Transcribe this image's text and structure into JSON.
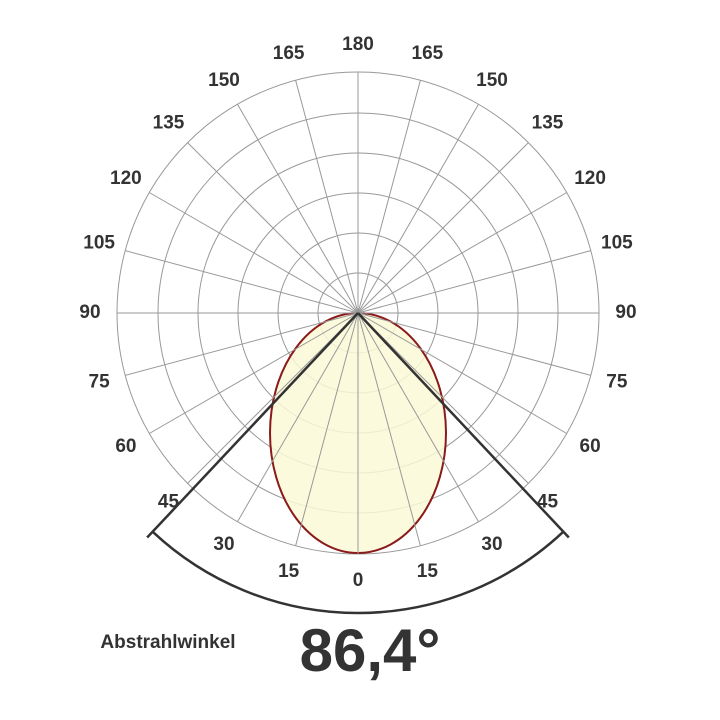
{
  "diagram": {
    "type": "polar",
    "angle_labels_right": [
      0,
      15,
      30,
      45,
      60,
      75,
      90,
      105,
      120,
      135,
      150,
      165,
      180
    ],
    "angle_labels_left": [
      15,
      30,
      45,
      60,
      75,
      90,
      105,
      120,
      135,
      150,
      165
    ],
    "caption": "Abstrahlwinkel",
    "beam_angle": {
      "value": 86.4,
      "label": "86,4°"
    }
  }
}
